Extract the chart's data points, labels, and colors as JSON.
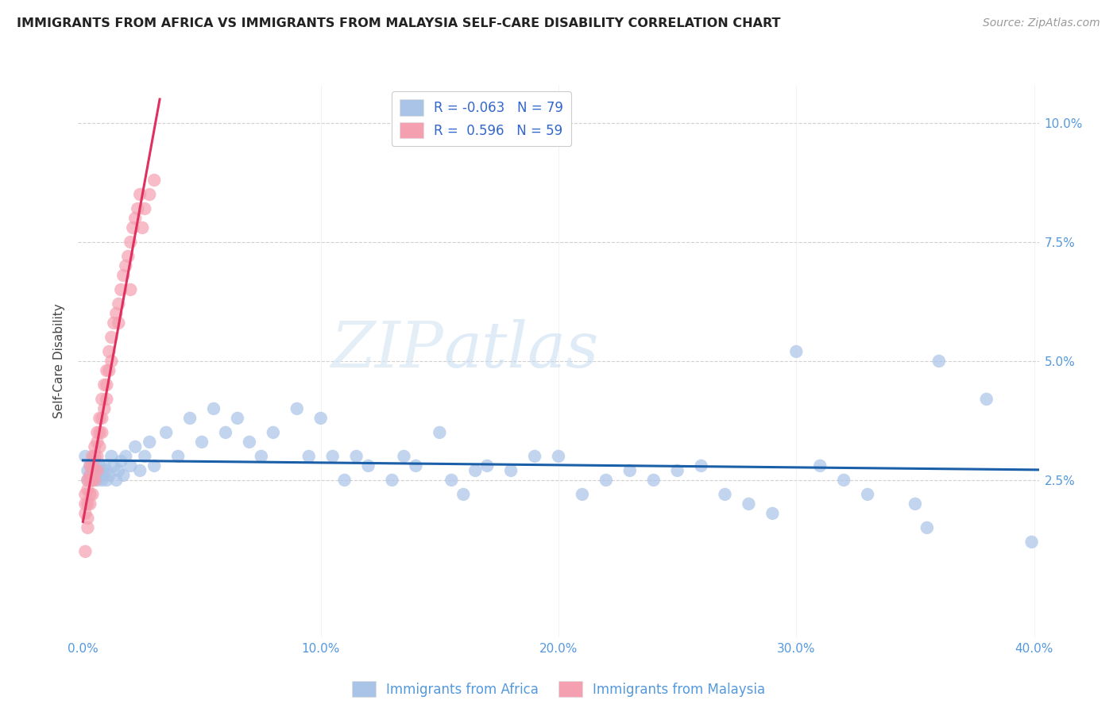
{
  "title": "IMMIGRANTS FROM AFRICA VS IMMIGRANTS FROM MALAYSIA SELF-CARE DISABILITY CORRELATION CHART",
  "source": "Source: ZipAtlas.com",
  "xlabel_africa": "Immigrants from Africa",
  "xlabel_malaysia": "Immigrants from Malaysia",
  "ylabel": "Self-Care Disability",
  "r_africa": -0.063,
  "n_africa": 79,
  "r_malaysia": 0.596,
  "n_malaysia": 59,
  "xlim": [
    -0.002,
    0.402
  ],
  "ylim": [
    -0.008,
    0.108
  ],
  "yticks": [
    0.025,
    0.05,
    0.075,
    0.1
  ],
  "ytick_labels": [
    "2.5%",
    "5.0%",
    "7.5%",
    "10.0%"
  ],
  "xticks": [
    0.0,
    0.1,
    0.2,
    0.3,
    0.4
  ],
  "xtick_labels": [
    "0.0%",
    "10.0%",
    "20.0%",
    "30.0%",
    "40.0%"
  ],
  "color_africa": "#aac4e8",
  "color_malaysia": "#f4a0b0",
  "color_africa_line": "#1a5fa8",
  "color_malaysia_line": "#e03060",
  "watermark_zip": "ZIP",
  "watermark_atlas": "atlas",
  "africa_x": [
    0.001,
    0.002,
    0.002,
    0.003,
    0.003,
    0.004,
    0.004,
    0.005,
    0.005,
    0.006,
    0.006,
    0.007,
    0.007,
    0.008,
    0.008,
    0.009,
    0.009,
    0.01,
    0.01,
    0.011,
    0.012,
    0.013,
    0.014,
    0.015,
    0.016,
    0.017,
    0.018,
    0.02,
    0.022,
    0.024,
    0.026,
    0.028,
    0.03,
    0.035,
    0.04,
    0.045,
    0.05,
    0.055,
    0.06,
    0.065,
    0.07,
    0.075,
    0.08,
    0.09,
    0.095,
    0.1,
    0.105,
    0.11,
    0.115,
    0.12,
    0.13,
    0.135,
    0.14,
    0.15,
    0.155,
    0.16,
    0.165,
    0.17,
    0.18,
    0.19,
    0.2,
    0.21,
    0.22,
    0.23,
    0.24,
    0.25,
    0.26,
    0.27,
    0.28,
    0.29,
    0.3,
    0.31,
    0.32,
    0.33,
    0.35,
    0.355,
    0.36,
    0.38,
    0.399
  ],
  "africa_y": [
    0.03,
    0.027,
    0.025,
    0.028,
    0.026,
    0.025,
    0.027,
    0.026,
    0.028,
    0.025,
    0.027,
    0.026,
    0.028,
    0.025,
    0.027,
    0.026,
    0.028,
    0.025,
    0.027,
    0.026,
    0.03,
    0.028,
    0.025,
    0.027,
    0.029,
    0.026,
    0.03,
    0.028,
    0.032,
    0.027,
    0.03,
    0.033,
    0.028,
    0.035,
    0.03,
    0.038,
    0.033,
    0.04,
    0.035,
    0.038,
    0.033,
    0.03,
    0.035,
    0.04,
    0.03,
    0.038,
    0.03,
    0.025,
    0.03,
    0.028,
    0.025,
    0.03,
    0.028,
    0.035,
    0.025,
    0.022,
    0.027,
    0.028,
    0.027,
    0.03,
    0.03,
    0.022,
    0.025,
    0.027,
    0.025,
    0.027,
    0.028,
    0.022,
    0.02,
    0.018,
    0.052,
    0.028,
    0.025,
    0.022,
    0.02,
    0.015,
    0.05,
    0.042,
    0.012
  ],
  "malaysia_x": [
    0.001,
    0.001,
    0.001,
    0.002,
    0.002,
    0.002,
    0.002,
    0.003,
    0.003,
    0.003,
    0.003,
    0.003,
    0.004,
    0.004,
    0.004,
    0.004,
    0.005,
    0.005,
    0.005,
    0.005,
    0.006,
    0.006,
    0.006,
    0.006,
    0.007,
    0.007,
    0.007,
    0.008,
    0.008,
    0.008,
    0.009,
    0.009,
    0.01,
    0.01,
    0.01,
    0.011,
    0.011,
    0.012,
    0.012,
    0.013,
    0.014,
    0.015,
    0.015,
    0.016,
    0.017,
    0.018,
    0.019,
    0.02,
    0.02,
    0.021,
    0.022,
    0.023,
    0.024,
    0.025,
    0.026,
    0.028,
    0.03,
    0.001,
    0.002
  ],
  "malaysia_y": [
    0.02,
    0.022,
    0.018,
    0.023,
    0.025,
    0.02,
    0.017,
    0.026,
    0.028,
    0.022,
    0.025,
    0.02,
    0.03,
    0.028,
    0.025,
    0.022,
    0.032,
    0.03,
    0.027,
    0.025,
    0.035,
    0.033,
    0.03,
    0.027,
    0.038,
    0.035,
    0.032,
    0.042,
    0.038,
    0.035,
    0.045,
    0.04,
    0.048,
    0.045,
    0.042,
    0.052,
    0.048,
    0.055,
    0.05,
    0.058,
    0.06,
    0.062,
    0.058,
    0.065,
    0.068,
    0.07,
    0.072,
    0.075,
    0.065,
    0.078,
    0.08,
    0.082,
    0.085,
    0.078,
    0.082,
    0.085,
    0.088,
    0.01,
    0.015
  ]
}
